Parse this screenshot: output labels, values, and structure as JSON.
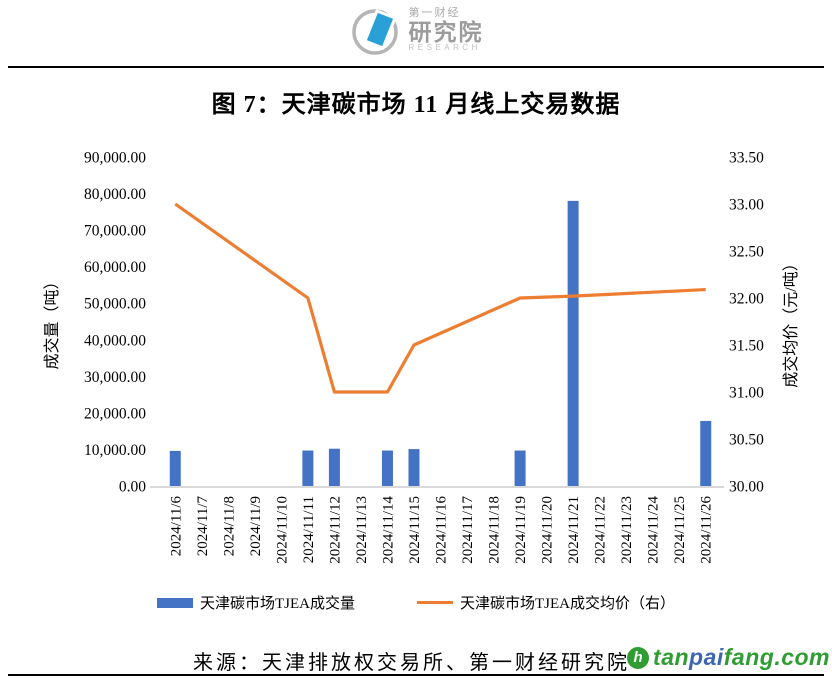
{
  "header": {
    "logo": {
      "brand_top": "第一财经",
      "brand_main": "研究院",
      "brand_sub": "RESEARCH"
    }
  },
  "title": "图 7：天津碳市场 11 月线上交易数据",
  "chart_data": {
    "type": "bar+line combo",
    "title": "图 7：天津碳市场 11 月线上交易数据",
    "grid": false,
    "legend_position": "bottom",
    "categories": [
      "2024/11/6",
      "2024/11/7",
      "2024/11/8",
      "2024/11/9",
      "2024/11/10",
      "2024/11/11",
      "2024/11/12",
      "2024/11/13",
      "2024/11/14",
      "2024/11/15",
      "2024/11/16",
      "2024/11/17",
      "2024/11/18",
      "2024/11/19",
      "2024/11/20",
      "2024/11/21",
      "2024/11/22",
      "2024/11/23",
      "2024/11/24",
      "2024/11/25",
      "2024/11/26"
    ],
    "series": [
      {
        "name": "天津碳市场TJEA成交量",
        "type": "bar",
        "axis": "left",
        "color": "#4472C4",
        "values": [
          9600,
          null,
          null,
          null,
          null,
          9700,
          10200,
          null,
          9700,
          10100,
          null,
          null,
          null,
          9700,
          null,
          78000,
          null,
          null,
          null,
          null,
          17800
        ]
      },
      {
        "name": "天津碳市场TJEA成交均价（右）",
        "type": "line",
        "axis": "right",
        "color": "#ED7D31",
        "values": [
          33.0,
          null,
          null,
          null,
          null,
          32.0,
          31.0,
          null,
          31.0,
          31.5,
          null,
          null,
          null,
          32.0,
          null,
          32.02,
          null,
          null,
          null,
          null,
          32.09
        ]
      }
    ],
    "left_axis": {
      "label": "成交量（吨）",
      "min": 0,
      "max": 90000,
      "step": 10000,
      "ticks": [
        "0.00",
        "10,000.00",
        "20,000.00",
        "30,000.00",
        "40,000.00",
        "50,000.00",
        "60,000.00",
        "70,000.00",
        "80,000.00",
        "90,000.00"
      ]
    },
    "right_axis": {
      "label": "成交均价（元/吨）",
      "min": 30,
      "max": 33.5,
      "step": 0.5,
      "ticks": [
        "30.00",
        "30.50",
        "31.00",
        "31.50",
        "32.00",
        "32.50",
        "33.00",
        "33.50"
      ]
    }
  },
  "legend": {
    "items": [
      {
        "label": "天津碳市场TJEA成交量",
        "swatch": "bar",
        "color": "#4472C4"
      },
      {
        "label": "天津碳市场TJEA成交均价（右）",
        "swatch": "line",
        "color": "#ED7D31"
      }
    ]
  },
  "footer": {
    "source": "来源：天津排放权交易所、第一财经研究院",
    "watermark": {
      "icon_letter": "h",
      "icon_color": "#2f9d32",
      "parts": [
        {
          "text": "tan",
          "color": "#2f9d32"
        },
        {
          "text": "pai",
          "color": "#3e66b0"
        },
        {
          "text": "fang.com",
          "color": "#2f9d32"
        }
      ]
    }
  },
  "colors": {
    "bar": "#4472C4",
    "line": "#ED7D31",
    "axis_line": "#D9D9D9",
    "rule": "#000000"
  }
}
